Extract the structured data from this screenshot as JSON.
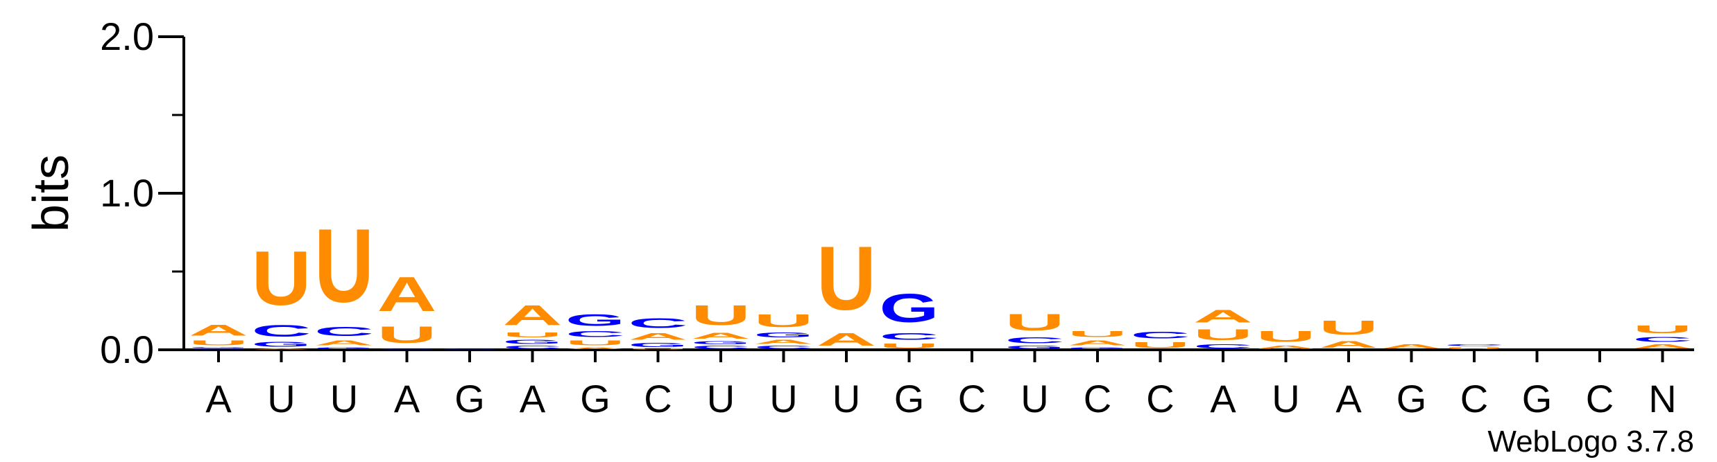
{
  "chart_data": {
    "type": "sequence-logo",
    "ylabel": "bits",
    "ylim": [
      0,
      2
    ],
    "y_ticks": [
      "0.0",
      "1.0",
      "2.0"
    ],
    "colors": {
      "A": "#ff8c00",
      "U": "#ff8c00",
      "C": "#0000ff",
      "G": "#0000ff"
    },
    "positions": [
      "A",
      "U",
      "U",
      "A",
      "G",
      "A",
      "G",
      "C",
      "U",
      "U",
      "U",
      "G",
      "C",
      "U",
      "C",
      "C",
      "A",
      "U",
      "A",
      "G",
      "C",
      "G",
      "C",
      "N"
    ],
    "stacks": [
      [
        {
          "b": "C",
          "h": 0.01
        },
        {
          "b": "G",
          "h": 0.01
        },
        {
          "b": "U",
          "h": 0.05
        },
        {
          "b": "A",
          "h": 0.11
        }
      ],
      [
        {
          "b": "A",
          "h": 0.01
        },
        {
          "b": "G",
          "h": 0.05
        },
        {
          "b": "C",
          "h": 0.12
        },
        {
          "b": "U",
          "h": 0.55
        }
      ],
      [
        {
          "b": "G",
          "h": 0.02
        },
        {
          "b": "A",
          "h": 0.05
        },
        {
          "b": "C",
          "h": 0.09
        },
        {
          "b": "U",
          "h": 0.75
        }
      ],
      [
        {
          "b": "C",
          "h": 0.01
        },
        {
          "b": "U",
          "h": 0.17
        },
        {
          "b": "A",
          "h": 0.35
        }
      ],
      [
        {
          "b": "C",
          "h": 0.01
        }
      ],
      [
        {
          "b": "C",
          "h": 0.03
        },
        {
          "b": "G",
          "h": 0.04
        },
        {
          "b": "U",
          "h": 0.05
        },
        {
          "b": "A",
          "h": 0.2
        }
      ],
      [
        {
          "b": "A",
          "h": 0.02
        },
        {
          "b": "U",
          "h": 0.05
        },
        {
          "b": "C",
          "h": 0.06
        },
        {
          "b": "G",
          "h": 0.12
        }
      ],
      [
        {
          "b": "U",
          "h": 0.01
        },
        {
          "b": "G",
          "h": 0.04
        },
        {
          "b": "A",
          "h": 0.07
        },
        {
          "b": "C",
          "h": 0.1
        }
      ],
      [
        {
          "b": "C",
          "h": 0.03
        },
        {
          "b": "G",
          "h": 0.03
        },
        {
          "b": "A",
          "h": 0.06
        },
        {
          "b": "U",
          "h": 0.2
        }
      ],
      [
        {
          "b": "C",
          "h": 0.03
        },
        {
          "b": "A",
          "h": 0.04
        },
        {
          "b": "G",
          "h": 0.05
        },
        {
          "b": "U",
          "h": 0.13
        }
      ],
      [
        {
          "b": "A",
          "h": 0.13
        },
        {
          "b": "U",
          "h": 0.65
        }
      ],
      [
        {
          "b": "U",
          "h": 0.05
        },
        {
          "b": "C",
          "h": 0.07
        },
        {
          "b": "G",
          "h": 0.29
        }
      ],
      [],
      [
        {
          "b": "G",
          "h": 0.03
        },
        {
          "b": "C",
          "h": 0.06
        },
        {
          "b": "U",
          "h": 0.17
        }
      ],
      [
        {
          "b": "G",
          "h": 0.02
        },
        {
          "b": "A",
          "h": 0.05
        },
        {
          "b": "U",
          "h": 0.06
        }
      ],
      [
        {
          "b": "U",
          "h": 0.06
        },
        {
          "b": "C",
          "h": 0.07
        }
      ],
      [
        {
          "b": "C",
          "h": 0.04
        },
        {
          "b": "U",
          "h": 0.11
        },
        {
          "b": "A",
          "h": 0.13
        }
      ],
      [
        {
          "b": "A",
          "h": 0.03
        },
        {
          "b": "U",
          "h": 0.11
        }
      ],
      [
        {
          "b": "A",
          "h": 0.07
        },
        {
          "b": "U",
          "h": 0.14
        }
      ],
      [
        {
          "b": "A",
          "h": 0.04
        }
      ],
      [
        {
          "b": "U",
          "h": 0.02
        },
        {
          "b": "C",
          "h": 0.02
        }
      ],
      [],
      [],
      [
        {
          "b": "A",
          "h": 0.04
        },
        {
          "b": "C",
          "h": 0.05
        },
        {
          "b": "U",
          "h": 0.08
        }
      ]
    ]
  },
  "credit": "WebLogo 3.7.8"
}
